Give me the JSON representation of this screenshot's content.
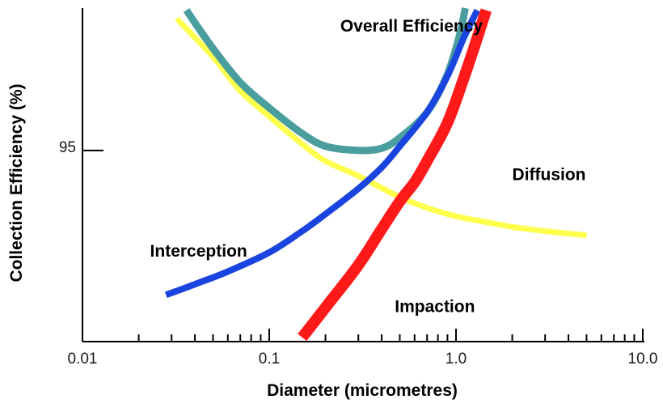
{
  "chart_data": {
    "type": "line",
    "xlabel": "Diameter (micrometres)",
    "ylabel": "Collection Efficiency (%)",
    "x_scale": "log",
    "xlim": [
      0.01,
      10.0
    ],
    "x_ticks": [
      {
        "value": 0.01,
        "label": "0.01"
      },
      {
        "value": 0.1,
        "label": "0.1"
      },
      {
        "value": 1.0,
        "label": "1.0"
      },
      {
        "value": 10.0,
        "label": "10.0"
      }
    ],
    "y_ticks": [
      {
        "value": 95,
        "label": "95"
      }
    ],
    "ylim": [
      86,
      101.7
    ],
    "grid": false,
    "legend": "none",
    "series": [
      {
        "key": "overall",
        "color": "#4a9e9e",
        "points": [
          [
            0.036,
            101.6
          ],
          [
            0.05,
            99.8
          ],
          [
            0.07,
            98.2
          ],
          [
            0.1,
            97.0
          ],
          [
            0.15,
            95.8
          ],
          [
            0.2,
            95.2
          ],
          [
            0.3,
            95.0
          ],
          [
            0.4,
            95.1
          ],
          [
            0.5,
            95.6
          ],
          [
            0.7,
            96.8
          ],
          [
            0.9,
            98.6
          ],
          [
            1.05,
            100.5
          ],
          [
            1.12,
            101.7
          ]
        ]
      },
      {
        "key": "diffusion",
        "color": "#ffff4d",
        "points": [
          [
            0.032,
            101.2
          ],
          [
            0.05,
            99.4
          ],
          [
            0.07,
            97.8
          ],
          [
            0.1,
            96.6
          ],
          [
            0.15,
            95.3
          ],
          [
            0.2,
            94.5
          ],
          [
            0.3,
            93.8
          ],
          [
            0.5,
            92.8
          ],
          [
            0.7,
            92.3
          ],
          [
            1.0,
            91.9
          ],
          [
            1.5,
            91.6
          ],
          [
            2.0,
            91.4
          ],
          [
            3.0,
            91.2
          ],
          [
            5.0,
            91.0
          ]
        ]
      },
      {
        "key": "interception",
        "color": "#1a44e0",
        "points": [
          [
            0.028,
            88.2
          ],
          [
            0.04,
            88.7
          ],
          [
            0.06,
            89.3
          ],
          [
            0.1,
            90.2
          ],
          [
            0.15,
            91.2
          ],
          [
            0.2,
            92.0
          ],
          [
            0.3,
            93.2
          ],
          [
            0.4,
            94.2
          ],
          [
            0.5,
            95.2
          ],
          [
            0.7,
            96.8
          ],
          [
            0.9,
            98.5
          ],
          [
            1.1,
            100.3
          ],
          [
            1.3,
            101.6
          ]
        ]
      },
      {
        "key": "impaction",
        "color": "#ff1a1a",
        "points": [
          [
            0.15,
            86.2
          ],
          [
            0.2,
            87.6
          ],
          [
            0.3,
            89.6
          ],
          [
            0.4,
            91.3
          ],
          [
            0.5,
            92.6
          ],
          [
            0.6,
            93.5
          ],
          [
            0.7,
            94.5
          ],
          [
            0.9,
            96.3
          ],
          [
            1.1,
            98.4
          ],
          [
            1.3,
            100.3
          ],
          [
            1.45,
            101.6
          ]
        ]
      }
    ],
    "annotations": [
      {
        "key": "overall",
        "text": "Overall Efficiency",
        "x": 0.24,
        "y": 100.6
      },
      {
        "key": "diffusion",
        "text": "Diffusion",
        "x": 2.0,
        "y": 93.6
      },
      {
        "key": "interception",
        "text": "Interception",
        "x": 0.023,
        "y": 90.0
      },
      {
        "key": "impaction",
        "text": "Impaction",
        "x": 0.47,
        "y": 87.4
      }
    ]
  }
}
